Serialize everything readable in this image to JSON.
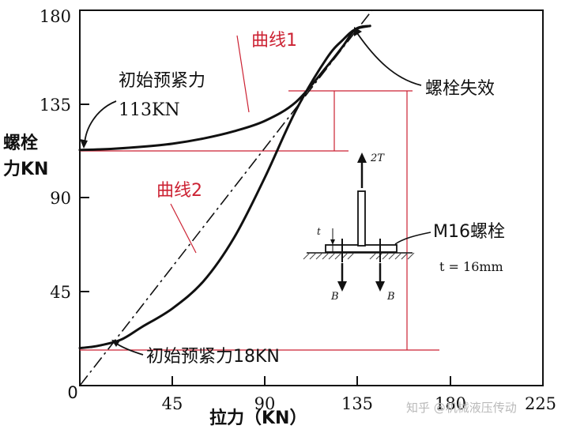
{
  "chart_data": {
    "type": "line",
    "title": "",
    "xlabel": "拉力（KN）",
    "ylabel_line1": "螺栓",
    "ylabel_line2": "力KN",
    "xlim": [
      0,
      225
    ],
    "ylim": [
      0,
      180
    ],
    "x_ticks": [
      "0",
      "45",
      "90",
      "135",
      "180",
      "225"
    ],
    "y_ticks": [
      "45",
      "90",
      "135",
      "180"
    ],
    "series": [
      {
        "name": "曲线1",
        "x": [
          0,
          15,
          30,
          45,
          60,
          75,
          90,
          105,
          120,
          128,
          134,
          141
        ],
        "y": [
          113,
          113.5,
          114.5,
          116,
          118.5,
          122,
          127,
          136,
          153,
          163,
          171,
          172.5
        ]
      },
      {
        "name": "曲线2",
        "x": [
          0,
          5,
          10,
          20,
          30,
          45,
          60,
          75,
          90,
          105,
          120,
          128,
          134,
          141
        ],
        "y": [
          18,
          18.5,
          19.3,
          22,
          28,
          37,
          50,
          71,
          100,
          132,
          157,
          166,
          171,
          172.5
        ]
      },
      {
        "name": "",
        "style": "dashed",
        "x": [
          0,
          142
        ],
        "y": [
          0,
          180
        ]
      }
    ],
    "annotations": {
      "curve1": "曲线1",
      "curve2": "曲线2",
      "preload_113_line1": "初始预紧力",
      "preload_113_line2": "113KN",
      "preload_18": "初始预紧力18KN",
      "failure": "螺栓失效",
      "bolt": "M16螺栓",
      "force_2t": "2T",
      "force_b_left": "B",
      "force_b_right": "B",
      "thickness_t": "t",
      "thickness_eq": "t = 16mm"
    },
    "grid": false,
    "legend": "none"
  },
  "watermark": "知乎 @机械液压传动",
  "colors": {
    "curve": "#111111",
    "guide": "#cc2233",
    "hatch": "#444444",
    "label_red": "#cc2233"
  }
}
